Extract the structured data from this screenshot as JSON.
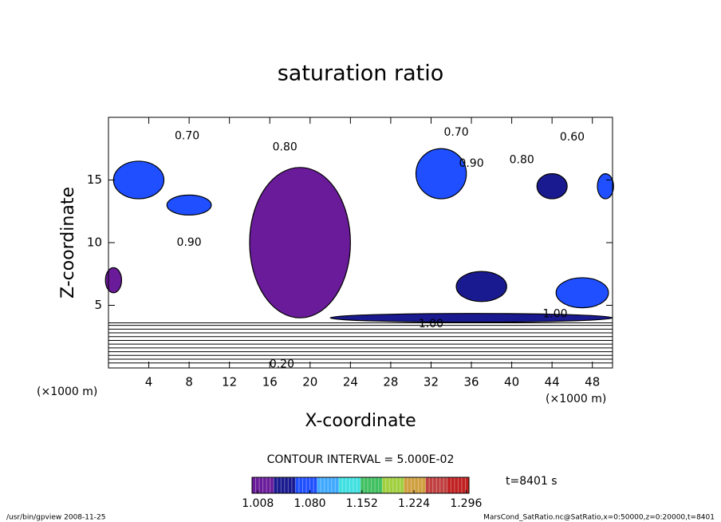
{
  "chart_data": {
    "type": "contour",
    "title": "saturation ratio",
    "x_label": "X-coordinate",
    "y_label": "Z-coordinate",
    "x_unit": "(×1000 m)",
    "y_unit": "(×1000 m)",
    "xlim": [
      0,
      50
    ],
    "ylim": [
      0,
      20
    ],
    "xticks": [
      4,
      8,
      12,
      16,
      20,
      24,
      28,
      32,
      36,
      40,
      44,
      48
    ],
    "yticks": [
      5,
      10,
      15
    ],
    "contour_interval": "CONTOUR INTERVAL = 5.000E-02",
    "time_label": "t=8401 s",
    "shaded": [
      {
        "x": 3,
        "z": 15,
        "rx": 2.5,
        "rz": 1.5,
        "value": 1.07
      },
      {
        "x": 8,
        "z": 13,
        "rx": 2.2,
        "rz": 0.8,
        "value": 1.06
      },
      {
        "x": 19,
        "z": 10,
        "rx": 5,
        "rz": 6,
        "value": 1.005
      },
      {
        "x": 33,
        "z": 15.5,
        "rx": 2.5,
        "rz": 2,
        "value": 1.08
      },
      {
        "x": 44,
        "z": 14.5,
        "rx": 1.5,
        "rz": 1,
        "value": 1.05
      },
      {
        "x": 49.3,
        "z": 14.5,
        "rx": 0.8,
        "rz": 1,
        "value": 1.06
      },
      {
        "x": 37,
        "z": 6.5,
        "rx": 2.5,
        "rz": 1.2,
        "value": 1.04
      },
      {
        "x": 47,
        "z": 6,
        "rx": 2.6,
        "rz": 1.2,
        "value": 1.06
      },
      {
        "x": 0.5,
        "z": 7,
        "rx": 0.8,
        "rz": 1,
        "value": 1.02
      },
      {
        "x": 36,
        "z": 4,
        "rx": 14,
        "rz": 0.35,
        "value": 1.04
      }
    ],
    "stratified_contours_z": [
      0.4,
      0.7,
      1.0,
      1.3,
      1.6,
      1.9,
      2.2,
      2.5,
      2.8,
      3.1,
      3.4,
      3.6
    ],
    "contour_labels": [
      {
        "text": "0.70",
        "x": 7.8,
        "z": 18.5
      },
      {
        "text": "0.70",
        "x": 34.5,
        "z": 18.8
      },
      {
        "text": "0.60",
        "x": 46,
        "z": 18.4
      },
      {
        "text": "0.80",
        "x": 17.5,
        "z": 17.6
      },
      {
        "text": "0.90",
        "x": 36,
        "z": 16.3
      },
      {
        "text": "0.80",
        "x": 41,
        "z": 16.6
      },
      {
        "text": "0.90",
        "x": 8,
        "z": 10
      },
      {
        "text": "1.00",
        "x": 32,
        "z": 3.5
      },
      {
        "text": "1.00",
        "x": 44.3,
        "z": 4.3
      },
      {
        "text": "0.20",
        "x": 17.2,
        "z": 0.3
      }
    ],
    "colorbar": {
      "lim": [
        1.0,
        1.3
      ],
      "ticks": [
        1.008,
        {
          "value": 1.08,
          "label": "1.080"
        },
        1.152,
        1.224,
        1.296
      ],
      "colors": [
        "#6a1b9a",
        "#1a1a90",
        "#1f4fff",
        "#3fa9ff",
        "#40e0e0",
        "#40c060",
        "#a0d040",
        "#d0a040",
        "#c04040",
        "#c02020"
      ]
    },
    "footer_left": "/usr/bin/gpview  2008-11-25",
    "footer_right": "MarsCond_SatRatio.nc@SatRatio,x=0:50000,z=0:20000,t=8401"
  }
}
